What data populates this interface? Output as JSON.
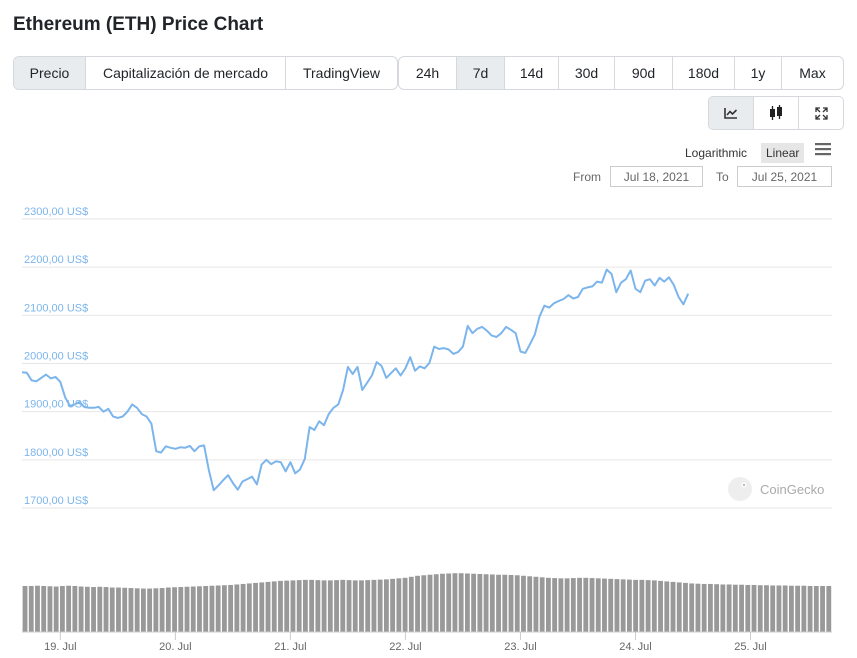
{
  "title": "Ethereum (ETH) Price Chart",
  "data_tabs": [
    "Precio",
    "Capitalización de mercado",
    "TradingView"
  ],
  "data_tab_active": "Precio",
  "range_tabs": [
    "24h",
    "7d",
    "14d",
    "30d",
    "90d",
    "180d",
    "1y",
    "Max"
  ],
  "range_tab_active": "7d",
  "tools": [
    "line-chart-icon",
    "candlestick-icon",
    "expand-icon"
  ],
  "scale": {
    "logarithmic": "Logarithmic",
    "linear": "Linear",
    "active": "Linear"
  },
  "range_selector": {
    "from_label": "From",
    "from_value": "Jul 18, 2021",
    "to_label": "To",
    "to_value": "Jul 25, 2021"
  },
  "watermark": "CoinGecko",
  "colors": {
    "line": "#7cb5ec",
    "volume": "#999999",
    "axis_label": "#7cb5ec",
    "grid": "#e6e6e6"
  },
  "chart_data": {
    "type": "line",
    "ylim": [
      1700,
      2300
    ],
    "yticks": [
      1700,
      1800,
      1900,
      2000,
      2100,
      2200,
      2300
    ],
    "ytick_labels": [
      "1700,00 US$",
      "1800,00 US$",
      "1900,00 US$",
      "2000,00 US$",
      "2100,00 US$",
      "2200,00 US$",
      "2300,00 US$"
    ],
    "x_range": [
      "2021-07-18T16:00",
      "2021-07-25T17:00"
    ],
    "xticks": [
      "2021-07-19",
      "2021-07-20",
      "2021-07-21",
      "2021-07-22",
      "2021-07-23",
      "2021-07-24",
      "2021-07-25"
    ],
    "xtick_labels": [
      "19. Jul",
      "20. Jul",
      "21. Jul",
      "22. Jul",
      "23. Jul",
      "24. Jul",
      "25. Jul"
    ],
    "series": [
      {
        "values": [
          [
            "2021-07-18T16:00",
            1982
          ],
          [
            "2021-07-18T17:00",
            1981
          ],
          [
            "2021-07-18T18:00",
            1965
          ],
          [
            "2021-07-18T19:00",
            1963
          ],
          [
            "2021-07-18T20:00",
            1970
          ],
          [
            "2021-07-18T21:00",
            1977
          ],
          [
            "2021-07-18T22:00",
            1969
          ],
          [
            "2021-07-18T23:00",
            1972
          ],
          [
            "2021-07-19T00:00",
            1962
          ],
          [
            "2021-07-19T01:00",
            1930
          ],
          [
            "2021-07-19T02:00",
            1912
          ],
          [
            "2021-07-19T03:00",
            1915
          ],
          [
            "2021-07-19T04:00",
            1920
          ],
          [
            "2021-07-19T05:00",
            1910
          ],
          [
            "2021-07-19T06:00",
            1908
          ],
          [
            "2021-07-19T07:00",
            1908
          ],
          [
            "2021-07-19T08:00",
            1910
          ],
          [
            "2021-07-19T09:00",
            1900
          ],
          [
            "2021-07-19T10:00",
            1906
          ],
          [
            "2021-07-19T11:00",
            1890
          ],
          [
            "2021-07-19T12:00",
            1887
          ],
          [
            "2021-07-19T13:00",
            1890
          ],
          [
            "2021-07-19T14:00",
            1900
          ],
          [
            "2021-07-19T15:00",
            1915
          ],
          [
            "2021-07-19T16:00",
            1908
          ],
          [
            "2021-07-19T17:00",
            1895
          ],
          [
            "2021-07-19T18:00",
            1890
          ],
          [
            "2021-07-19T19:00",
            1875
          ],
          [
            "2021-07-19T20:00",
            1818
          ],
          [
            "2021-07-19T21:00",
            1815
          ],
          [
            "2021-07-19T22:00",
            1828
          ],
          [
            "2021-07-19T23:00",
            1825
          ],
          [
            "2021-07-20T00:00",
            1823
          ],
          [
            "2021-07-20T01:00",
            1826
          ],
          [
            "2021-07-20T02:00",
            1825
          ],
          [
            "2021-07-20T03:00",
            1829
          ],
          [
            "2021-07-20T04:00",
            1818
          ],
          [
            "2021-07-20T05:00",
            1828
          ],
          [
            "2021-07-20T06:00",
            1830
          ],
          [
            "2021-07-20T07:00",
            1778
          ],
          [
            "2021-07-20T08:00",
            1737
          ],
          [
            "2021-07-20T09:00",
            1747
          ],
          [
            "2021-07-20T10:00",
            1758
          ],
          [
            "2021-07-20T11:00",
            1768
          ],
          [
            "2021-07-20T12:00",
            1752
          ],
          [
            "2021-07-20T13:00",
            1738
          ],
          [
            "2021-07-20T14:00",
            1755
          ],
          [
            "2021-07-20T15:00",
            1760
          ],
          [
            "2021-07-20T16:00",
            1765
          ],
          [
            "2021-07-20T17:00",
            1749
          ],
          [
            "2021-07-20T18:00",
            1790
          ],
          [
            "2021-07-20T19:00",
            1800
          ],
          [
            "2021-07-20T20:00",
            1791
          ],
          [
            "2021-07-20T21:00",
            1797
          ],
          [
            "2021-07-20T22:00",
            1795
          ],
          [
            "2021-07-20T23:00",
            1776
          ],
          [
            "2021-07-21T00:00",
            1795
          ],
          [
            "2021-07-21T01:00",
            1772
          ],
          [
            "2021-07-21T02:00",
            1780
          ],
          [
            "2021-07-21T03:00",
            1802
          ],
          [
            "2021-07-21T04:00",
            1868
          ],
          [
            "2021-07-21T05:00",
            1862
          ],
          [
            "2021-07-21T06:00",
            1880
          ],
          [
            "2021-07-21T07:00",
            1872
          ],
          [
            "2021-07-21T08:00",
            1895
          ],
          [
            "2021-07-21T09:00",
            1908
          ],
          [
            "2021-07-21T10:00",
            1915
          ],
          [
            "2021-07-21T11:00",
            1945
          ],
          [
            "2021-07-21T12:00",
            1993
          ],
          [
            "2021-07-21T13:00",
            1978
          ],
          [
            "2021-07-21T14:00",
            1993
          ],
          [
            "2021-07-21T15:00",
            1945
          ],
          [
            "2021-07-21T16:00",
            1960
          ],
          [
            "2021-07-21T17:00",
            1975
          ],
          [
            "2021-07-21T18:00",
            2003
          ],
          [
            "2021-07-21T19:00",
            1995
          ],
          [
            "2021-07-21T20:00",
            1970
          ],
          [
            "2021-07-21T21:00",
            1980
          ],
          [
            "2021-07-21T22:00",
            1990
          ],
          [
            "2021-07-21T23:00",
            1975
          ],
          [
            "2021-07-22T00:00",
            1990
          ],
          [
            "2021-07-22T01:00",
            2013
          ],
          [
            "2021-07-22T02:00",
            1985
          ],
          [
            "2021-07-22T03:00",
            1994
          ],
          [
            "2021-07-22T04:00",
            1990
          ],
          [
            "2021-07-22T05:00",
            2001
          ],
          [
            "2021-07-22T06:00",
            2035
          ],
          [
            "2021-07-22T07:00",
            2030
          ],
          [
            "2021-07-22T08:00",
            2032
          ],
          [
            "2021-07-22T09:00",
            2029
          ],
          [
            "2021-07-22T10:00",
            2020
          ],
          [
            "2021-07-22T11:00",
            2024
          ],
          [
            "2021-07-22T12:00",
            2035
          ],
          [
            "2021-07-22T13:00",
            2078
          ],
          [
            "2021-07-22T14:00",
            2063
          ],
          [
            "2021-07-22T15:00",
            2072
          ],
          [
            "2021-07-22T16:00",
            2076
          ],
          [
            "2021-07-22T17:00",
            2068
          ],
          [
            "2021-07-22T18:00",
            2058
          ],
          [
            "2021-07-22T19:00",
            2055
          ],
          [
            "2021-07-22T20:00",
            2063
          ],
          [
            "2021-07-22T21:00",
            2076
          ],
          [
            "2021-07-22T22:00",
            2070
          ],
          [
            "2021-07-22T23:00",
            2063
          ],
          [
            "2021-07-23T00:00",
            2025
          ],
          [
            "2021-07-23T01:00",
            2022
          ],
          [
            "2021-07-23T02:00",
            2040
          ],
          [
            "2021-07-23T03:00",
            2060
          ],
          [
            "2021-07-23T04:00",
            2098
          ],
          [
            "2021-07-23T05:00",
            2120
          ],
          [
            "2021-07-23T06:00",
            2116
          ],
          [
            "2021-07-23T07:00",
            2125
          ],
          [
            "2021-07-23T08:00",
            2130
          ],
          [
            "2021-07-23T09:00",
            2134
          ],
          [
            "2021-07-23T10:00",
            2142
          ],
          [
            "2021-07-23T11:00",
            2135
          ],
          [
            "2021-07-23T12:00",
            2138
          ],
          [
            "2021-07-23T13:00",
            2155
          ],
          [
            "2021-07-23T14:00",
            2158
          ],
          [
            "2021-07-23T15:00",
            2160
          ],
          [
            "2021-07-23T16:00",
            2170
          ],
          [
            "2021-07-23T17:00",
            2168
          ],
          [
            "2021-07-23T18:00",
            2195
          ],
          [
            "2021-07-23T19:00",
            2186
          ],
          [
            "2021-07-23T20:00",
            2148
          ],
          [
            "2021-07-23T21:00",
            2168
          ],
          [
            "2021-07-23T22:00",
            2175
          ],
          [
            "2021-07-23T23:00",
            2193
          ],
          [
            "2021-07-24T00:00",
            2155
          ],
          [
            "2021-07-24T01:00",
            2148
          ],
          [
            "2021-07-24T02:00",
            2172
          ],
          [
            "2021-07-24T03:00",
            2175
          ],
          [
            "2021-07-24T04:00",
            2162
          ],
          [
            "2021-07-24T05:00",
            2178
          ],
          [
            "2021-07-24T06:00",
            2170
          ],
          [
            "2021-07-24T07:00",
            2179
          ],
          [
            "2021-07-24T08:00",
            2163
          ],
          [
            "2021-07-24T09:00",
            2138
          ],
          [
            "2021-07-24T10:00",
            2123
          ],
          [
            "2021-07-24T11:00",
            2145
          ]
        ]
      }
    ],
    "volume": [
      900,
      900,
      905,
      900,
      895,
      890,
      900,
      905,
      900,
      890,
      885,
      880,
      885,
      880,
      870,
      870,
      865,
      860,
      855,
      850,
      850,
      855,
      860,
      870,
      875,
      880,
      885,
      890,
      895,
      900,
      905,
      910,
      915,
      920,
      930,
      940,
      950,
      960,
      970,
      980,
      990,
      1000,
      1005,
      1010,
      1015,
      1020,
      1020,
      1015,
      1010,
      1010,
      1015,
      1020,
      1015,
      1010,
      1010,
      1015,
      1020,
      1025,
      1030,
      1040,
      1050,
      1060,
      1080,
      1100,
      1110,
      1120,
      1130,
      1140,
      1145,
      1150,
      1150,
      1145,
      1140,
      1135,
      1130,
      1125,
      1120,
      1120,
      1115,
      1110,
      1100,
      1090,
      1080,
      1070,
      1060,
      1055,
      1050,
      1050,
      1055,
      1060,
      1060,
      1055,
      1050,
      1045,
      1040,
      1035,
      1030,
      1025,
      1020,
      1020,
      1015,
      1010,
      1000,
      990,
      980,
      970,
      960,
      950,
      945,
      940,
      940,
      935,
      930,
      930,
      925,
      925,
      920,
      920,
      915,
      915,
      910,
      910,
      910,
      905,
      905,
      905,
      900,
      900,
      900,
      900
    ],
    "volume_ylim": [
      0,
      1350
    ]
  }
}
